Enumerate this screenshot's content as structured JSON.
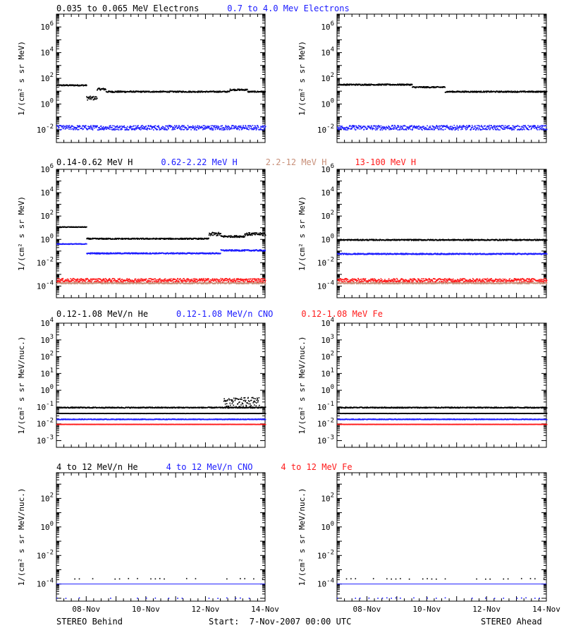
{
  "footer": {
    "left": "STEREO Behind",
    "center": "Start:  7-Nov-2007 00:00 UTC",
    "right": "STEREO Ahead"
  },
  "colors": {
    "black": "#000000",
    "blue": "#1a1aff",
    "tan": "#c8907a",
    "red": "#ff1a1a",
    "gray": "#888888"
  },
  "x_ticks": [
    "08-Nov",
    "10-Nov",
    "12-Nov",
    "14-Nov"
  ],
  "chart_data": [
    {
      "type": "scatter",
      "row": 1,
      "series_labels": [
        {
          "text": "0.035 to 0.065 MeV Electrons",
          "color": "#000000"
        },
        {
          "text": "0.7 to 4.0 Mev Electrons",
          "color": "#1a1aff"
        }
      ],
      "ylabel": "1/(cm² s sr MeV)",
      "y_scale": "log",
      "ylim_exp": [
        -3,
        7
      ],
      "y_tick_exps": [
        -2,
        0,
        2,
        4,
        6
      ],
      "xlim_days": [
        7.0,
        14.0
      ],
      "panels": {
        "behind": [
          {
            "color": "#000000",
            "segments": [
              [
                7.0,
                8.0,
                1.5,
                0.05
              ],
              [
                8.0,
                8.35,
                0.5,
                0.15
              ],
              [
                8.35,
                8.65,
                1.2,
                0.08
              ],
              [
                8.65,
                9.5,
                1.0,
                0.06
              ],
              [
                9.5,
                12.8,
                1.0,
                0.05
              ],
              [
                12.8,
                13.4,
                1.15,
                0.06
              ],
              [
                13.4,
                14.0,
                1.0,
                0.05
              ]
            ]
          },
          {
            "color": "#1a1aff",
            "segments": [
              [
                7.0,
                14.0,
                -1.8,
                0.18
              ]
            ]
          }
        ],
        "ahead": [
          {
            "color": "#000000",
            "segments": [
              [
                7.0,
                9.5,
                1.55,
                0.05
              ],
              [
                9.5,
                10.6,
                1.35,
                0.05
              ],
              [
                10.6,
                14.0,
                1.0,
                0.05
              ]
            ]
          },
          {
            "color": "#1a1aff",
            "segments": [
              [
                7.0,
                14.0,
                -1.8,
                0.18
              ]
            ]
          }
        ]
      }
    },
    {
      "type": "scatter",
      "row": 2,
      "series_labels": [
        {
          "text": "0.14-0.62 MeV H",
          "color": "#000000"
        },
        {
          "text": "0.62-2.22 MeV H",
          "color": "#1a1aff"
        },
        {
          "text": "2.2-12 MeV H",
          "color": "#c8907a"
        },
        {
          "text": "13-100 MeV H",
          "color": "#ff1a1a"
        }
      ],
      "ylabel": "1/(cm² s sr MeV)",
      "y_scale": "log",
      "ylim_exp": [
        -5,
        6
      ],
      "y_tick_exps": [
        -4,
        -2,
        0,
        2,
        4,
        6
      ],
      "xlim_days": [
        7.0,
        14.0
      ],
      "panels": {
        "behind": [
          {
            "color": "#000000",
            "segments": [
              [
                7.0,
                8.0,
                1.1,
                0.03
              ],
              [
                8.0,
                9.5,
                0.1,
                0.05
              ],
              [
                9.5,
                12.1,
                0.1,
                0.05
              ],
              [
                12.1,
                12.5,
                0.5,
                0.15
              ],
              [
                12.5,
                13.3,
                0.3,
                0.08
              ],
              [
                13.3,
                14.0,
                0.5,
                0.12
              ]
            ]
          },
          {
            "color": "#1a1aff",
            "segments": [
              [
                7.0,
                8.0,
                -0.35,
                0.03
              ],
              [
                8.0,
                12.5,
                -1.15,
                0.05
              ],
              [
                12.5,
                14.0,
                -0.9,
                0.06
              ]
            ]
          },
          {
            "color": "#c8907a",
            "segments": [
              [
                7.0,
                14.0,
                -3.7,
                0.06
              ]
            ]
          },
          {
            "color": "#ff1a1a",
            "segments": [
              [
                7.0,
                14.0,
                -3.45,
                0.15
              ]
            ]
          }
        ],
        "ahead": [
          {
            "color": "#000000",
            "segments": [
              [
                7.0,
                14.0,
                0.0,
                0.05
              ]
            ]
          },
          {
            "color": "#1a1aff",
            "segments": [
              [
                7.0,
                14.0,
                -1.2,
                0.05
              ]
            ]
          },
          {
            "color": "#c8907a",
            "segments": [
              [
                7.0,
                14.0,
                -3.7,
                0.06
              ]
            ]
          },
          {
            "color": "#ff1a1a",
            "segments": [
              [
                7.0,
                14.0,
                -3.45,
                0.15
              ]
            ]
          }
        ]
      }
    },
    {
      "type": "scatter",
      "row": 3,
      "series_labels": [
        {
          "text": "0.12-1.08 MeV/n He",
          "color": "#000000"
        },
        {
          "text": "0.12-1.08 MeV/n CNO",
          "color": "#1a1aff"
        },
        {
          "text": "0.12-1.08 MeV Fe",
          "color": "#ff1a1a"
        }
      ],
      "ylabel": "1/(cm² s sr MeV/nuc.)",
      "y_scale": "log",
      "ylim_exp": [
        -3.4,
        4
      ],
      "y_tick_exps": [
        -3,
        -2,
        -1,
        0,
        1,
        2,
        3,
        4
      ],
      "xlim_days": [
        7.0,
        14.0
      ],
      "panels": {
        "behind": [
          {
            "color": "#000000",
            "segments": [
              [
                7.0,
                14.0,
                -1.0,
                0.03
              ],
              [
                7.0,
                14.0,
                -1.35,
                0.01
              ],
              [
                12.6,
                13.8,
                -0.7,
                0.3
              ]
            ]
          },
          {
            "color": "#1a1aff",
            "segments": [
              [
                7.0,
                14.0,
                -1.7,
                0.02
              ]
            ]
          },
          {
            "color": "#ff1a1a",
            "segments": [
              [
                7.0,
                14.0,
                -2.0,
                0.01
              ]
            ]
          }
        ],
        "ahead": [
          {
            "color": "#000000",
            "segments": [
              [
                7.0,
                14.0,
                -1.0,
                0.03
              ],
              [
                7.0,
                14.0,
                -1.35,
                0.01
              ]
            ]
          },
          {
            "color": "#1a1aff",
            "segments": [
              [
                7.0,
                14.0,
                -1.7,
                0.02
              ]
            ]
          },
          {
            "color": "#ff1a1a",
            "segments": [
              [
                7.0,
                14.0,
                -2.0,
                0.01
              ]
            ]
          }
        ]
      }
    },
    {
      "type": "scatter",
      "row": 4,
      "series_labels": [
        {
          "text": "4 to 12 MeV/n He",
          "color": "#000000"
        },
        {
          "text": "4 to 12 MeV/n CNO",
          "color": "#1a1aff"
        },
        {
          "text": "4 to 12 MeV Fe",
          "color": "#ff1a1a"
        }
      ],
      "ylabel": "1/(cm² s sr MeV/nuc.)",
      "y_scale": "log",
      "ylim_exp": [
        -5.2,
        3.8
      ],
      "y_tick_exps": [
        -4,
        -2,
        0,
        2
      ],
      "xlim_days": [
        7.0,
        14.0
      ],
      "panels": {
        "behind": [
          {
            "color": "#000000",
            "segments": [
              [
                7.0,
                14.0,
                -3.6,
                0.02
              ]
            ],
            "sparse": true
          },
          {
            "color": "#1a1aff",
            "segments": [
              [
                7.0,
                14.0,
                -4.0,
                0.0
              ]
            ],
            "line": true
          },
          {
            "color": "#1a1aff",
            "segments": [
              [
                7.0,
                14.0,
                -4.95,
                0.02
              ]
            ],
            "sparse": true
          }
        ],
        "ahead": [
          {
            "color": "#000000",
            "segments": [
              [
                7.0,
                14.0,
                -3.6,
                0.02
              ]
            ],
            "sparse": true
          },
          {
            "color": "#1a1aff",
            "segments": [
              [
                7.0,
                14.0,
                -4.0,
                0.0
              ]
            ],
            "line": true
          },
          {
            "color": "#1a1aff",
            "segments": [
              [
                7.0,
                14.0,
                -4.95,
                0.02
              ]
            ],
            "sparse": true
          }
        ]
      }
    }
  ]
}
